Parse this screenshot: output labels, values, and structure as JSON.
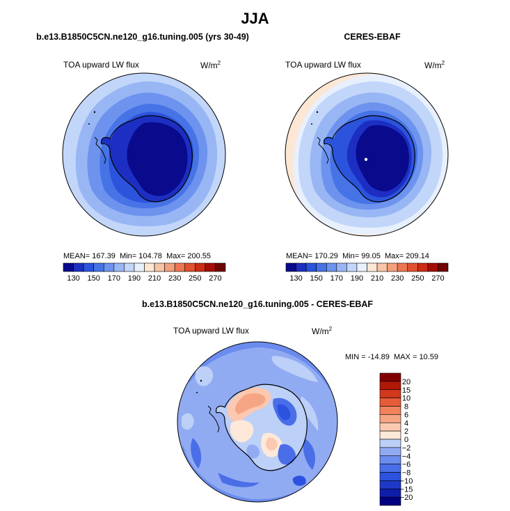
{
  "figure": {
    "title": "JJA"
  },
  "panels": [
    {
      "title": "b.e13.B1850C5CN.ne120_g16.tuning.005 (yrs 30-49)",
      "variable": "TOA upward LW flux",
      "units": "W/m",
      "units_exponent": "2",
      "stats": {
        "mean_label": "MEAN=",
        "mean": "167.39",
        "min_label": "Min=",
        "min": "104.78",
        "max_label": "Max=",
        "max": "200.55"
      }
    },
    {
      "title": "CERES-EBAF",
      "variable": "TOA upward LW flux",
      "units": "W/m",
      "units_exponent": "2",
      "stats": {
        "mean_label": "MEAN=",
        "mean": "170.29",
        "min_label": "Min=",
        "min": "99.05",
        "max_label": "Max=",
        "max": "209.14"
      }
    },
    {
      "title": "b.e13.B1850C5CN.ne120_g16.tuning.005 - CERES-EBAF",
      "variable": "TOA upward LW flux",
      "units": "W/m",
      "units_exponent": "2",
      "stats": {
        "min_label": "MIN =",
        "min": "-14.89",
        "max_label": "MAX =",
        "max": "10.59"
      }
    }
  ],
  "chart_data": [
    {
      "type": "heatmap",
      "projection": "south polar stereographic",
      "title": "b.e13.B1850C5CN.ne120_g16.tuning.005 (yrs 30-49)",
      "variable": "TOA upward LW flux",
      "units": "W/m2",
      "mean": 167.39,
      "min": 104.78,
      "max": 200.55,
      "colorbar": {
        "orientation": "horizontal",
        "levels": [
          130,
          140,
          150,
          160,
          170,
          180,
          190,
          200,
          210,
          220,
          230,
          240,
          250,
          260,
          270
        ],
        "tick_labels": [
          "130",
          "150",
          "170",
          "190",
          "210",
          "230",
          "250",
          "270"
        ],
        "colors": [
          "#0a0a8c",
          "#1c2fc2",
          "#2b53dc",
          "#4673e6",
          "#6d93ee",
          "#98b6f4",
          "#c2d6fa",
          "#e8f0fd",
          "#fce6d4",
          "#f8c4a6",
          "#f3a07c",
          "#ec7652",
          "#e1502f",
          "#cd2c14",
          "#a40d07",
          "#6e0404"
        ]
      }
    },
    {
      "type": "heatmap",
      "projection": "south polar stereographic",
      "title": "CERES-EBAF",
      "variable": "TOA upward LW flux",
      "units": "W/m2",
      "mean": 170.29,
      "min": 99.05,
      "max": 209.14,
      "colorbar": {
        "orientation": "horizontal",
        "levels": [
          130,
          140,
          150,
          160,
          170,
          180,
          190,
          200,
          210,
          220,
          230,
          240,
          250,
          260,
          270
        ],
        "tick_labels": [
          "130",
          "150",
          "170",
          "190",
          "210",
          "230",
          "250",
          "270"
        ],
        "colors": [
          "#0a0a8c",
          "#1c2fc2",
          "#2b53dc",
          "#4673e6",
          "#6d93ee",
          "#98b6f4",
          "#c2d6fa",
          "#e8f0fd",
          "#fce6d4",
          "#f8c4a6",
          "#f3a07c",
          "#ec7652",
          "#e1502f",
          "#cd2c14",
          "#a40d07",
          "#6e0404"
        ]
      }
    },
    {
      "type": "heatmap",
      "projection": "south polar stereographic",
      "title": "b.e13.B1850C5CN.ne120_g16.tuning.005 - CERES-EBAF",
      "variable": "TOA upward LW flux",
      "units": "W/m2",
      "min": -14.89,
      "max": 10.59,
      "colorbar": {
        "orientation": "vertical",
        "levels": [
          -20,
          -15,
          -10,
          -8,
          -6,
          -4,
          -2,
          0,
          2,
          4,
          6,
          8,
          10,
          15,
          20
        ],
        "tick_labels": [
          "20",
          "15",
          "10",
          "8",
          "6",
          "4",
          "2",
          "0",
          "−2",
          "−4",
          "−6",
          "−8",
          "−10",
          "−15",
          "−20"
        ],
        "colors": [
          "#000080",
          "#0e1ea8",
          "#1e38c8",
          "#2d52e0",
          "#4a6ee8",
          "#6b8cee",
          "#91abf2",
          "#bcd0f8",
          "#fde8da",
          "#fbc8b0",
          "#f6a584",
          "#f0825c",
          "#e65c38",
          "#d2381c",
          "#b01808",
          "#800000"
        ]
      }
    }
  ]
}
